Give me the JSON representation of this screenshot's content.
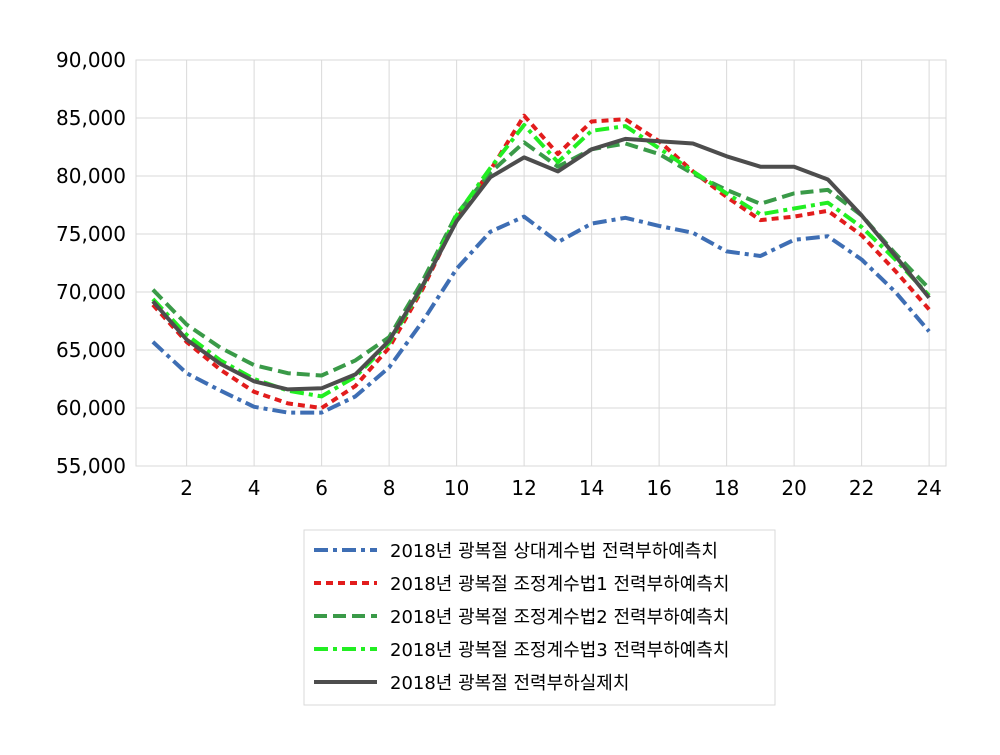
{
  "chart_data": {
    "type": "line",
    "title": "",
    "xlabel": "",
    "ylabel": "",
    "x": [
      1,
      2,
      3,
      4,
      5,
      6,
      7,
      8,
      9,
      10,
      11,
      12,
      13,
      14,
      15,
      16,
      17,
      18,
      19,
      20,
      21,
      22,
      23,
      24
    ],
    "xlim": [
      0.5,
      24.5
    ],
    "xticks": [
      2,
      4,
      6,
      8,
      10,
      12,
      14,
      16,
      18,
      20,
      22,
      24
    ],
    "xtick_labels": [
      "2",
      "4",
      "6",
      "8",
      "10",
      "12",
      "14",
      "16",
      "18",
      "20",
      "22",
      "24"
    ],
    "ylim": [
      55000,
      90000
    ],
    "yticks": [
      55000,
      60000,
      65000,
      70000,
      75000,
      80000,
      85000,
      90000
    ],
    "ytick_labels": [
      "55,000",
      "60,000",
      "65,000",
      "70,000",
      "75,000",
      "80,000",
      "85,000",
      "90,000"
    ],
    "grid": true,
    "legend_position": "bottom",
    "series": [
      {
        "name": "2018년 광복절 상대계수법 전력부하예측치",
        "color": "#3E6EB4",
        "dash": "dash-dot",
        "values": [
          65700,
          63000,
          61500,
          60100,
          59600,
          59600,
          61000,
          63500,
          67500,
          72000,
          75200,
          76500,
          74300,
          75900,
          76400,
          75700,
          75100,
          73500,
          73100,
          74500,
          74800,
          72800,
          70000,
          66600
        ]
      },
      {
        "name": "2018년 광복절 조정계수법1 전력부하예측치",
        "color": "#E21C1C",
        "dash": "dotted",
        "values": [
          68900,
          65700,
          63300,
          61400,
          60400,
          60000,
          61900,
          65200,
          70300,
          76300,
          80500,
          85200,
          81900,
          84700,
          84900,
          83000,
          80400,
          78200,
          76200,
          76500,
          77000,
          74900,
          71800,
          68500
        ]
      },
      {
        "name": "2018년 광복절 조정계수법2 전력부하예측치",
        "color": "#3A9A48",
        "dash": "dashed",
        "values": [
          70200,
          67200,
          65200,
          63700,
          63000,
          62800,
          64100,
          66100,
          71000,
          76700,
          80300,
          82900,
          80800,
          82300,
          82800,
          81900,
          80200,
          78800,
          77600,
          78500,
          78800,
          76600,
          73300,
          70300
        ]
      },
      {
        "name": "2018년 광복절 조정계수법3 전력부하예측치",
        "color": "#22EE22",
        "dash": "dash-dot",
        "values": [
          69400,
          66300,
          64100,
          62500,
          61500,
          61000,
          62700,
          65600,
          70500,
          76600,
          80700,
          84400,
          81200,
          83900,
          84300,
          82400,
          80400,
          78500,
          76700,
          77200,
          77700,
          75600,
          72800,
          69700
        ]
      },
      {
        "name": "2018년 광복절 전력부하실제치",
        "color": "#4D4D4D",
        "dash": "solid",
        "values": [
          69200,
          65900,
          63800,
          62300,
          61600,
          61700,
          62900,
          65800,
          70600,
          76100,
          79900,
          81600,
          80400,
          82300,
          83200,
          83000,
          82800,
          81700,
          80800,
          80800,
          79700,
          76600,
          73100,
          69500
        ]
      }
    ]
  }
}
